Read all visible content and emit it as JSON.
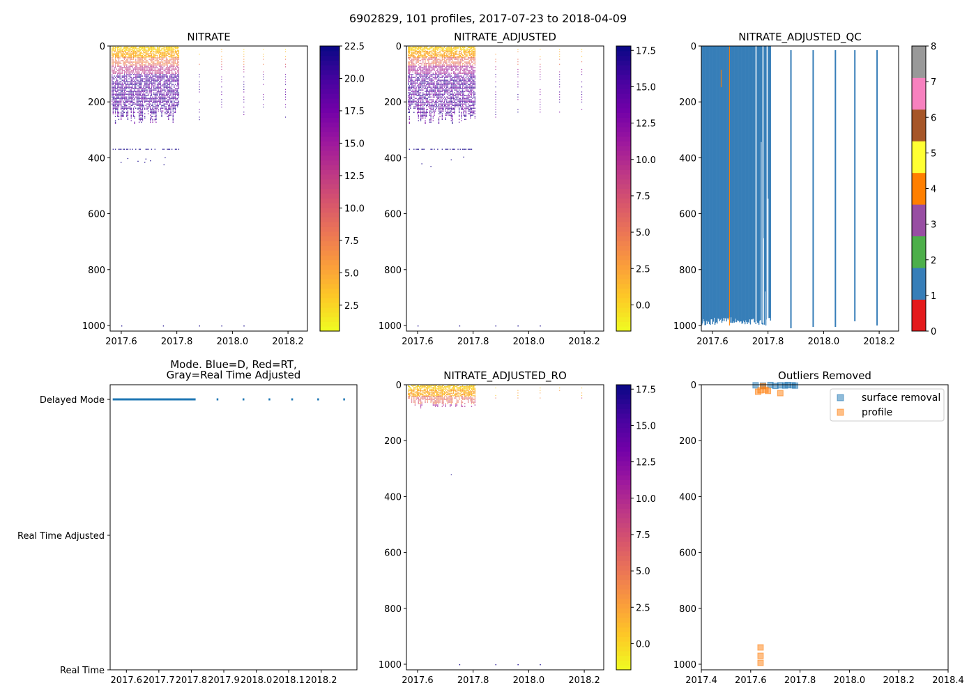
{
  "suptitle": "6902829, 101 profiles, 2017-07-23 to 2018-04-09",
  "colors": {
    "plasma_r": [
      "#f0f921",
      "#fdca26",
      "#fb9f3a",
      "#ed7953",
      "#d8576b",
      "#bd3786",
      "#9c179e",
      "#7201a8",
      "#46039f",
      "#0d0887"
    ],
    "qc_classes": [
      "#e41a1c",
      "#377eb8",
      "#4daf4a",
      "#984ea3",
      "#ff7f00",
      "#ffff33",
      "#a65628",
      "#f781bf",
      "#999999"
    ],
    "mode_blue": "#1f77b4",
    "outlier_surface": "#1f77b4",
    "outlier_profile": "#ff7f0e"
  },
  "chart_data": [
    {
      "id": "nitrate",
      "type": "scatter",
      "title": "NITRATE",
      "xlim": [
        2017.56,
        2018.27
      ],
      "xticks": [
        "2017.6",
        "2017.8",
        "2018.0",
        "2018.2"
      ],
      "ylim": [
        1020,
        0
      ],
      "yticks": [
        "0",
        "200",
        "400",
        "600",
        "800",
        "1000"
      ],
      "colorbar": {
        "min": 0.5,
        "max": 22.5,
        "ticks": [
          "2.5",
          "5.0",
          "7.5",
          "10.0",
          "12.5",
          "15.0",
          "17.5",
          "20.0",
          "22.5"
        ]
      },
      "dense_period": [
        2017.56,
        2017.81
      ],
      "sparse_profiles": [
        2017.88,
        2017.96,
        2018.04,
        2018.11,
        2018.19
      ],
      "deep_points": [
        2017.6,
        2017.75,
        2017.88,
        2017.96,
        2018.04
      ]
    },
    {
      "id": "nitrate_adjusted",
      "type": "scatter",
      "title": "NITRATE_ADJUSTED",
      "xlim": [
        2017.56,
        2018.27
      ],
      "xticks": [
        "2017.6",
        "2017.8",
        "2018.0",
        "2018.2"
      ],
      "ylim": [
        1020,
        0
      ],
      "yticks": [
        "0",
        "200",
        "400",
        "600",
        "800",
        "1000"
      ],
      "colorbar": {
        "min": -1.8,
        "max": 17.8,
        "ticks": [
          "0.0",
          "2.5",
          "5.0",
          "7.5",
          "10.0",
          "12.5",
          "15.0",
          "17.5"
        ]
      },
      "dense_period": [
        2017.56,
        2017.81
      ],
      "sparse_profiles": [
        2017.88,
        2017.96,
        2018.04,
        2018.11,
        2018.19
      ],
      "deep_points": [
        2017.6,
        2017.75,
        2017.88,
        2017.96,
        2018.04
      ]
    },
    {
      "id": "nitrate_adjusted_qc",
      "type": "heatmap",
      "title": "NITRATE_ADJUSTED_QC",
      "xlim": [
        2017.56,
        2018.27
      ],
      "xticks": [
        "2017.6",
        "2017.8",
        "2018.0",
        "2018.2"
      ],
      "ylim": [
        1020,
        0
      ],
      "yticks": [
        "0",
        "200",
        "400",
        "600",
        "800",
        "1000"
      ],
      "colorbar": {
        "min": 0,
        "max": 8,
        "ticks": [
          "0",
          "1",
          "2",
          "3",
          "4",
          "5",
          "6",
          "7",
          "8"
        ]
      },
      "dense_block": [
        2017.56,
        2017.81
      ],
      "sparse_profiles": [
        2017.88,
        2017.96,
        2018.04,
        2018.11,
        2018.19
      ],
      "qc4_profile": 2017.66
    },
    {
      "id": "mode",
      "type": "scatter",
      "title": "Mode. Blue=D, Red=RT,",
      "title2": "Gray=Real Time Adjusted",
      "xlim": [
        2017.55,
        2018.31
      ],
      "xticks": [
        "2017.6",
        "2017.7",
        "2017.8",
        "2017.9",
        "2018.0",
        "2018.1",
        "2018.2"
      ],
      "categories": [
        "Delayed Mode",
        "Real Time Adjusted",
        "Real Time"
      ],
      "dense_period": [
        2017.56,
        2017.81
      ],
      "sparse_profiles": [
        2017.88,
        2017.96,
        2018.04,
        2018.11,
        2018.19,
        2018.27
      ]
    },
    {
      "id": "nitrate_adjusted_ro",
      "type": "scatter",
      "title": "NITRATE_ADJUSTED_RO",
      "xlim": [
        2017.56,
        2018.27
      ],
      "xticks": [
        "2017.6",
        "2017.8",
        "2018.0",
        "2018.2"
      ],
      "ylim": [
        1020,
        0
      ],
      "yticks": [
        "0",
        "200",
        "400",
        "600",
        "800",
        "1000"
      ],
      "colorbar": {
        "min": -1.8,
        "max": 17.8,
        "ticks": [
          "0.0",
          "2.5",
          "5.0",
          "7.5",
          "10.0",
          "12.5",
          "15.0",
          "17.5"
        ]
      },
      "dense_period": [
        2017.56,
        2017.81
      ],
      "sparse_profiles": [
        2017.88,
        2017.96,
        2018.04,
        2018.11,
        2018.19
      ],
      "deep_points": [
        2017.75,
        2017.88,
        2017.96,
        2018.04
      ]
    },
    {
      "id": "outliers",
      "type": "scatter",
      "title": "Outliers Removed",
      "xlim": [
        2017.4,
        2018.4
      ],
      "xticks": [
        "2017.4",
        "2017.6",
        "2017.8",
        "2018.0",
        "2018.2",
        "2018.4"
      ],
      "ylim": [
        1020,
        0
      ],
      "yticks": [
        "0",
        "200",
        "400",
        "600",
        "800",
        "1000"
      ],
      "legend": {
        "location": "top-right",
        "entries": [
          "surface removal",
          "profile"
        ]
      },
      "series": [
        {
          "name": "surface removal",
          "x": [
            2017.62,
            2017.65,
            2017.68,
            2017.7,
            2017.72,
            2017.74,
            2017.75,
            2017.77,
            2017.78
          ],
          "y": [
            2,
            3,
            1,
            4,
            2,
            3,
            1,
            2,
            3
          ]
        },
        {
          "name": "profile",
          "x": [
            2017.63,
            2017.64,
            2017.64,
            2017.64,
            2017.64,
            2017.65,
            2017.66,
            2017.67,
            2017.72
          ],
          "y": [
            25,
            20,
            940,
            970,
            995,
            5,
            18,
            22,
            30
          ]
        }
      ]
    }
  ]
}
